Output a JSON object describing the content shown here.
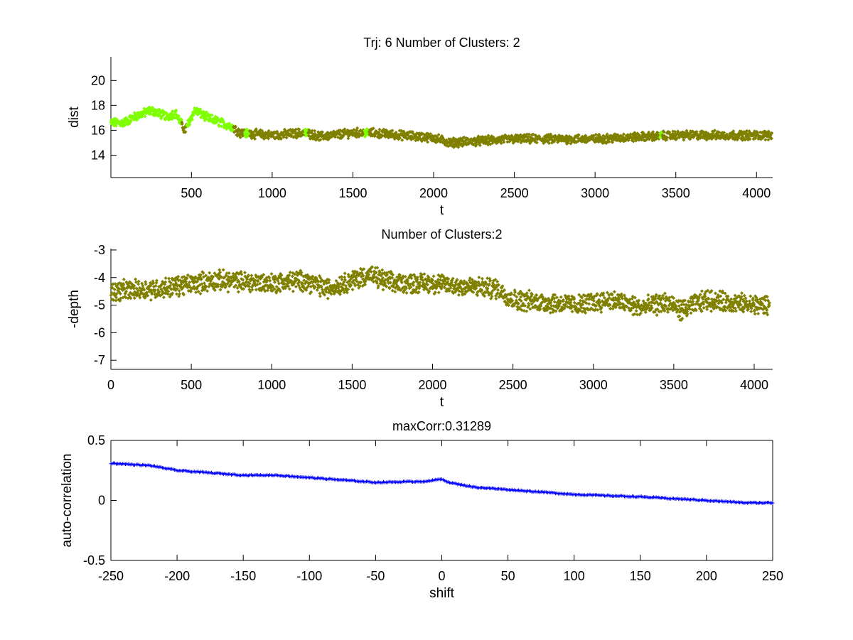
{
  "colors": {
    "cluster_a": "#7fff00",
    "cluster_b": "#808000",
    "corr": "#0000ff"
  },
  "chart_data": [
    {
      "type": "scatter",
      "title": "Trj: 6 Number of Clusters: 2",
      "xlabel": "t",
      "ylabel": "dist",
      "xlim": [
        1,
        4100
      ],
      "ylim": [
        12.2,
        21.9
      ],
      "xticks": [
        500,
        1000,
        1500,
        2000,
        2500,
        3000,
        3500,
        4000
      ],
      "yticks": [
        14,
        16,
        18,
        20
      ],
      "n_points": 4096,
      "trend": [
        [
          0,
          16.6
        ],
        [
          80,
          16.6
        ],
        [
          150,
          17.1
        ],
        [
          250,
          17.6
        ],
        [
          350,
          17.1
        ],
        [
          400,
          17.4
        ],
        [
          460,
          16.0
        ],
        [
          520,
          17.6
        ],
        [
          600,
          17.0
        ],
        [
          750,
          16.3
        ],
        [
          800,
          15.8
        ],
        [
          1000,
          15.6
        ],
        [
          1200,
          15.8
        ],
        [
          1300,
          15.5
        ],
        [
          1500,
          15.8
        ],
        [
          1600,
          15.8
        ],
        [
          2000,
          15.4
        ],
        [
          2100,
          15.0
        ],
        [
          2500,
          15.3
        ],
        [
          3000,
          15.3
        ],
        [
          3500,
          15.6
        ],
        [
          4096,
          15.6
        ]
      ],
      "noise": 0.3,
      "cluster_a_ranges": [
        [
          0,
          440
        ],
        [
          470,
          760
        ],
        [
          830,
          860
        ],
        [
          1200,
          1222
        ],
        [
          1570,
          1600
        ],
        [
          3400,
          3415
        ]
      ]
    },
    {
      "type": "scatter",
      "title": "Number of Clusters:2",
      "xlabel": "t",
      "ylabel": "-depth",
      "xlim": [
        0,
        4115
      ],
      "ylim": [
        -7.33,
        -2.95
      ],
      "xticks": [
        0,
        500,
        1000,
        1500,
        2000,
        2500,
        3000,
        3500,
        4000
      ],
      "yticks": [
        -7,
        -6,
        -5,
        -4,
        -3
      ],
      "n_points": 4096,
      "trend": [
        [
          0,
          -4.5
        ],
        [
          300,
          -4.4
        ],
        [
          650,
          -4.1
        ],
        [
          1000,
          -4.2
        ],
        [
          1200,
          -4.1
        ],
        [
          1350,
          -4.4
        ],
        [
          1600,
          -3.9
        ],
        [
          1750,
          -4.2
        ],
        [
          2000,
          -4.2
        ],
        [
          2150,
          -4.3
        ],
        [
          2400,
          -4.4
        ],
        [
          2500,
          -4.8
        ],
        [
          2700,
          -4.9
        ],
        [
          2900,
          -5.0
        ],
        [
          3100,
          -4.8
        ],
        [
          3300,
          -5.1
        ],
        [
          3450,
          -4.9
        ],
        [
          3550,
          -5.2
        ],
        [
          3700,
          -4.8
        ],
        [
          4000,
          -5.0
        ],
        [
          4096,
          -5.0
        ]
      ],
      "noise": 0.3
    },
    {
      "type": "line",
      "title": "maxCorr:0.31289",
      "xlabel": "shift",
      "ylabel": "auto-correlation",
      "xlim": [
        -250,
        250
      ],
      "ylim": [
        -0.5,
        0.5
      ],
      "xticks": [
        -250,
        -200,
        -150,
        -100,
        -50,
        0,
        50,
        100,
        150,
        200,
        250
      ],
      "yticks": [
        -0.5,
        0,
        0.5
      ],
      "ytick_labels": [
        "-0.5",
        "0",
        "0.5"
      ],
      "points": [
        [
          -250,
          0.31
        ],
        [
          -220,
          0.29
        ],
        [
          -200,
          0.25
        ],
        [
          -150,
          0.21
        ],
        [
          -125,
          0.21
        ],
        [
          -100,
          0.19
        ],
        [
          -50,
          0.15
        ],
        [
          -10,
          0.16
        ],
        [
          0,
          0.18
        ],
        [
          5,
          0.15
        ],
        [
          25,
          0.11
        ],
        [
          50,
          0.09
        ],
        [
          100,
          0.05
        ],
        [
          150,
          0.03
        ],
        [
          200,
          0.0
        ],
        [
          230,
          -0.02
        ],
        [
          250,
          -0.02
        ]
      ]
    }
  ]
}
